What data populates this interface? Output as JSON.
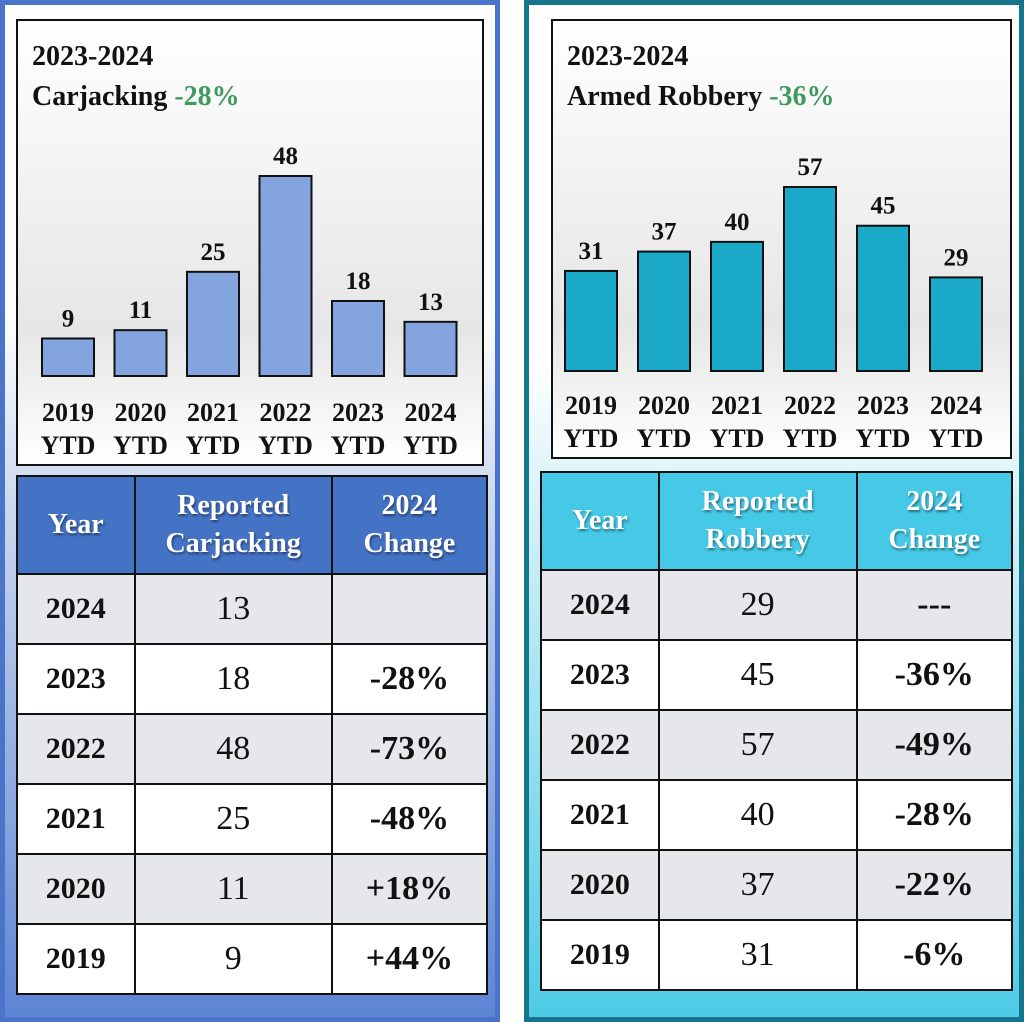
{
  "colors": {
    "left_bar": "#84a4df",
    "right_bar": "#1aaac8",
    "green": "#3f9a5d",
    "red": "#c00000"
  },
  "left": {
    "title_line1": "2023-2024",
    "title_line2": "Carjacking",
    "title_pct": "-28%",
    "table": {
      "headers": [
        "Year",
        "Reported\nCarjacking",
        "2024\nChange"
      ],
      "rows": [
        {
          "year": "2024",
          "count": "13",
          "change": "",
          "tone": "none"
        },
        {
          "year": "2023",
          "count": "18",
          "change": "-28%",
          "tone": "green"
        },
        {
          "year": "2022",
          "count": "48",
          "change": "-73%",
          "tone": "green"
        },
        {
          "year": "2021",
          "count": "25",
          "change": "-48%",
          "tone": "green"
        },
        {
          "year": "2020",
          "count": "11",
          "change": "+18%",
          "tone": "red"
        },
        {
          "year": "2019",
          "count": "9",
          "change": "+44%",
          "tone": "red"
        }
      ]
    }
  },
  "right": {
    "title_line1": "2023-2024",
    "title_line2": "Armed Robbery",
    "title_pct": "-36%",
    "table": {
      "headers": [
        "Year",
        "Reported\nRobbery",
        "2024\nChange"
      ],
      "rows": [
        {
          "year": "2024",
          "count": "29",
          "change": "---",
          "tone": "black"
        },
        {
          "year": "2023",
          "count": "45",
          "change": "-36%",
          "tone": "green"
        },
        {
          "year": "2022",
          "count": "57",
          "change": "-49%",
          "tone": "green"
        },
        {
          "year": "2021",
          "count": "40",
          "change": "-28%",
          "tone": "green"
        },
        {
          "year": "2020",
          "count": "37",
          "change": "-22%",
          "tone": "green"
        },
        {
          "year": "2019",
          "count": "31",
          "change": "-6%",
          "tone": "green"
        }
      ]
    }
  },
  "chart_data": [
    {
      "type": "bar",
      "title": "2023-2024 Carjacking -28%",
      "categories": [
        "2019 YTD",
        "2020 YTD",
        "2021 YTD",
        "2022 YTD",
        "2023 YTD",
        "2024 YTD"
      ],
      "values": [
        9,
        11,
        25,
        48,
        18,
        13
      ],
      "xlabel": "",
      "ylabel": "",
      "ylim": [
        0,
        48
      ],
      "grid": false,
      "data_labels": true
    },
    {
      "type": "bar",
      "title": "2023-2024 Armed Robbery -36%",
      "categories": [
        "2019 YTD",
        "2020 YTD",
        "2021 YTD",
        "2022 YTD",
        "2023 YTD",
        "2024 YTD"
      ],
      "values": [
        31,
        37,
        40,
        57,
        45,
        29
      ],
      "xlabel": "",
      "ylabel": "",
      "ylim": [
        0,
        57
      ],
      "grid": false,
      "data_labels": true
    }
  ]
}
